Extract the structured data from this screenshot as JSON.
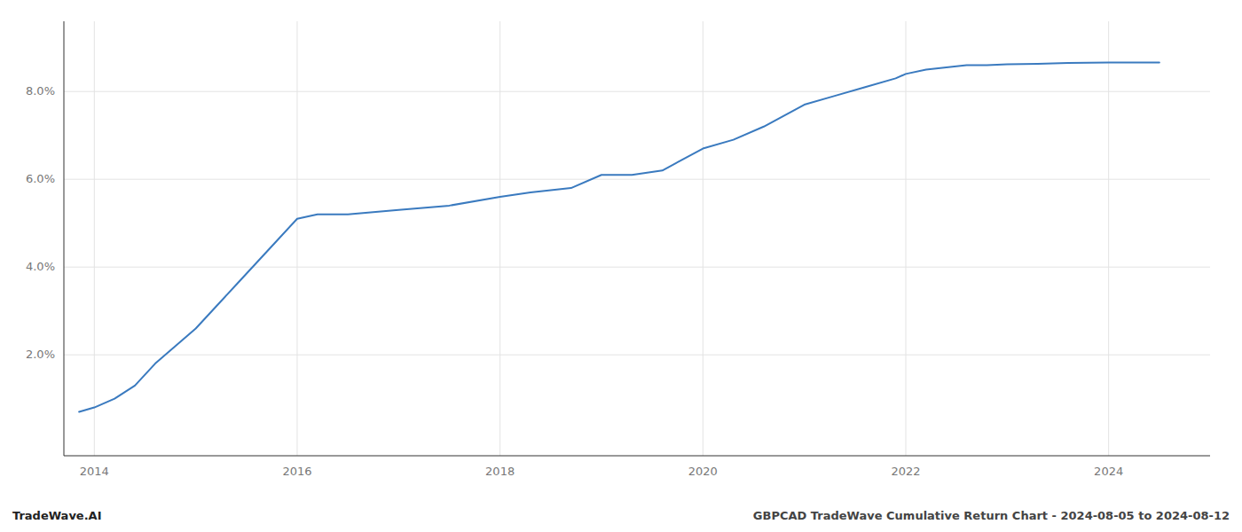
{
  "chart_data": {
    "type": "line",
    "title": "GBPCAD TradeWave Cumulative Return Chart - 2024-08-05 to 2024-08-12",
    "subtitle": "TradeWave.AI",
    "x": [
      2013.85,
      2014.0,
      2014.2,
      2014.4,
      2014.6,
      2014.8,
      2015.0,
      2015.2,
      2015.4,
      2015.6,
      2015.8,
      2016.0,
      2016.2,
      2016.5,
      2017.0,
      2017.5,
      2018.0,
      2018.3,
      2018.7,
      2019.0,
      2019.3,
      2019.6,
      2020.0,
      2020.3,
      2020.6,
      2021.0,
      2021.3,
      2021.6,
      2021.9,
      2022.0,
      2022.2,
      2022.4,
      2022.6,
      2022.8,
      2023.0,
      2023.3,
      2023.6,
      2024.0,
      2024.5
    ],
    "values": [
      0.007,
      0.008,
      0.01,
      0.013,
      0.018,
      0.022,
      0.026,
      0.031,
      0.036,
      0.041,
      0.046,
      0.051,
      0.052,
      0.052,
      0.053,
      0.054,
      0.056,
      0.057,
      0.058,
      0.061,
      0.061,
      0.062,
      0.067,
      0.069,
      0.072,
      0.077,
      0.079,
      0.081,
      0.083,
      0.084,
      0.085,
      0.0855,
      0.086,
      0.086,
      0.0862,
      0.0863,
      0.0865,
      0.0866,
      0.0866
    ],
    "color": "#3a7abf",
    "xlim": [
      2013.7,
      2025.0
    ],
    "ylim": [
      -0.003,
      0.096
    ],
    "xticks": [
      2014,
      2016,
      2018,
      2020,
      2022,
      2024
    ],
    "yticks": [
      {
        "value": 0.02,
        "label": "2.0%"
      },
      {
        "value": 0.04,
        "label": "4.0%"
      },
      {
        "value": 0.06,
        "label": "6.0%"
      },
      {
        "value": 0.08,
        "label": "8.0%"
      }
    ],
    "grid": true
  }
}
